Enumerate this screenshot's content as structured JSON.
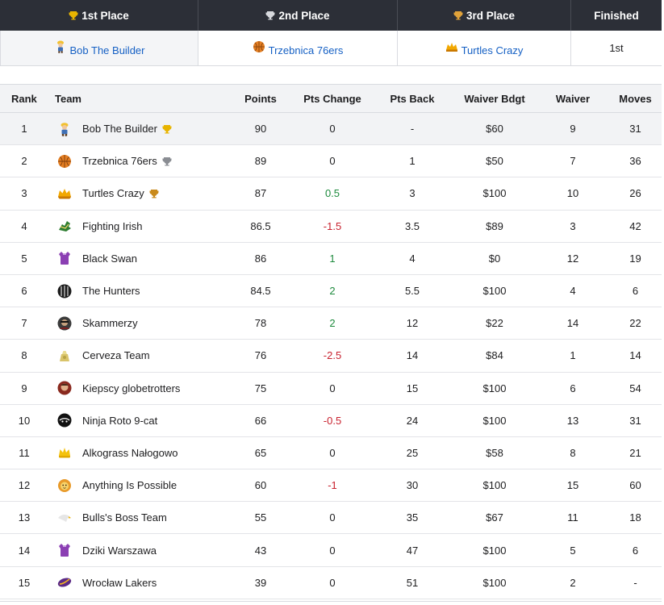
{
  "podium": {
    "headers": [
      "1st Place",
      "2nd Place",
      "3rd Place",
      "Finished"
    ],
    "teams": [
      "Bob The Builder",
      "Trzebnica 76ers",
      "Turtles Crazy"
    ],
    "finished": "1st"
  },
  "columns": {
    "rank": "Rank",
    "team": "Team",
    "points": "Points",
    "pts_change": "Pts Change",
    "pts_back": "Pts Back",
    "waiver_budget": "Waiver Bdgt",
    "waiver": "Waiver",
    "moves": "Moves"
  },
  "rows": [
    {
      "rank": "1",
      "team": "Bob The Builder",
      "points": "90",
      "change": "0",
      "back": "-",
      "budget": "$60",
      "waiver": "9",
      "moves": "31",
      "avatar": "builder",
      "trophy": "gold"
    },
    {
      "rank": "2",
      "team": "Trzebnica 76ers",
      "points": "89",
      "change": "0",
      "back": "1",
      "budget": "$50",
      "waiver": "7",
      "moves": "36",
      "avatar": "basketball",
      "trophy": "silver"
    },
    {
      "rank": "3",
      "team": "Turtles Crazy",
      "points": "87",
      "change": "0.5",
      "back": "3",
      "budget": "$100",
      "waiver": "10",
      "moves": "26",
      "avatar": "turtles",
      "trophy": "bronze"
    },
    {
      "rank": "4",
      "team": "Fighting Irish",
      "points": "86.5",
      "change": "-1.5",
      "back": "3.5",
      "budget": "$89",
      "waiver": "3",
      "moves": "42",
      "avatar": "irish",
      "trophy": ""
    },
    {
      "rank": "5",
      "team": "Black Swan",
      "points": "86",
      "change": "1",
      "back": "4",
      "budget": "$0",
      "waiver": "12",
      "moves": "19",
      "avatar": "jersey",
      "trophy": ""
    },
    {
      "rank": "6",
      "team": "The Hunters",
      "points": "84.5",
      "change": "2",
      "back": "5.5",
      "budget": "$100",
      "waiver": "4",
      "moves": "6",
      "avatar": "hunters",
      "trophy": ""
    },
    {
      "rank": "7",
      "team": "Skammerzy",
      "points": "78",
      "change": "2",
      "back": "12",
      "budget": "$22",
      "waiver": "14",
      "moves": "22",
      "avatar": "skammerzy",
      "trophy": ""
    },
    {
      "rank": "8",
      "team": "Cerveza Team",
      "points": "76",
      "change": "-2.5",
      "back": "14",
      "budget": "$84",
      "waiver": "1",
      "moves": "14",
      "avatar": "cerveza",
      "trophy": ""
    },
    {
      "rank": "9",
      "team": "Kiepscy globetrotters",
      "points": "75",
      "change": "0",
      "back": "15",
      "budget": "$100",
      "waiver": "6",
      "moves": "54",
      "avatar": "kiepscy",
      "trophy": ""
    },
    {
      "rank": "10",
      "team": "Ninja Roto 9-cat",
      "points": "66",
      "change": "-0.5",
      "back": "24",
      "budget": "$100",
      "waiver": "13",
      "moves": "31",
      "avatar": "ninja",
      "trophy": ""
    },
    {
      "rank": "11",
      "team": "Alkograss Nałogowo",
      "points": "65",
      "change": "0",
      "back": "25",
      "budget": "$58",
      "waiver": "8",
      "moves": "21",
      "avatar": "crown",
      "trophy": ""
    },
    {
      "rank": "12",
      "team": "Anything Is Possible",
      "points": "60",
      "change": "-1",
      "back": "30",
      "budget": "$100",
      "waiver": "15",
      "moves": "60",
      "avatar": "lion",
      "trophy": ""
    },
    {
      "rank": "13",
      "team": "Bulls's Boss Team",
      "points": "55",
      "change": "0",
      "back": "35",
      "budget": "$67",
      "waiver": "11",
      "moves": "18",
      "avatar": "eagle",
      "trophy": ""
    },
    {
      "rank": "14",
      "team": "Dziki Warszawa",
      "points": "43",
      "change": "0",
      "back": "47",
      "budget": "$100",
      "waiver": "5",
      "moves": "6",
      "avatar": "jersey",
      "trophy": ""
    },
    {
      "rank": "15",
      "team": "Wrocław Lakers",
      "points": "39",
      "change": "0",
      "back": "51",
      "budget": "$100",
      "waiver": "2",
      "moves": "-",
      "avatar": "lakers",
      "trophy": ""
    }
  ],
  "colors": {
    "header_bg": "#2c2f37",
    "link": "#1560c4",
    "positive": "#1d8a3d",
    "negative": "#c8212e",
    "gold": "#e8b400",
    "silver": "#8a8d93",
    "bronze": "#c98a1b"
  }
}
